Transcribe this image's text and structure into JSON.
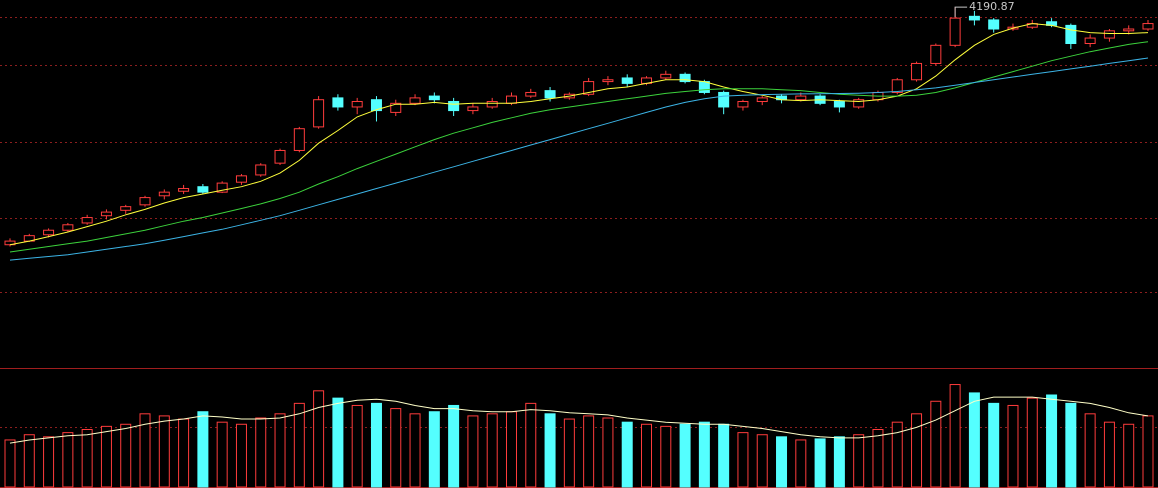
{
  "chart_data": {
    "type": "candlestick",
    "up_color": "#ff3c3c",
    "down_color": "#54ffff",
    "ylim": [
      2200,
      4230
    ],
    "vlim": [
      0,
      110
    ],
    "ohlc": [
      [
        2880,
        2915,
        2870,
        2900
      ],
      [
        2900,
        2940,
        2895,
        2930
      ],
      [
        2935,
        2970,
        2920,
        2960
      ],
      [
        2960,
        3000,
        2950,
        2990
      ],
      [
        3000,
        3045,
        2990,
        3030
      ],
      [
        3040,
        3075,
        3020,
        3060
      ],
      [
        3070,
        3100,
        3050,
        3090
      ],
      [
        3100,
        3150,
        3090,
        3140
      ],
      [
        3150,
        3185,
        3130,
        3170
      ],
      [
        3175,
        3210,
        3160,
        3190
      ],
      [
        3200,
        3215,
        3160,
        3170
      ],
      [
        3170,
        3230,
        3165,
        3220
      ],
      [
        3225,
        3270,
        3210,
        3260
      ],
      [
        3265,
        3330,
        3255,
        3320
      ],
      [
        3330,
        3410,
        3320,
        3400
      ],
      [
        3400,
        3530,
        3390,
        3520
      ],
      [
        3530,
        3700,
        3520,
        3680
      ],
      [
        3690,
        3710,
        3620,
        3640
      ],
      [
        3640,
        3690,
        3600,
        3670
      ],
      [
        3680,
        3700,
        3560,
        3620
      ],
      [
        3610,
        3680,
        3590,
        3660
      ],
      [
        3660,
        3710,
        3650,
        3690
      ],
      [
        3700,
        3720,
        3660,
        3680
      ],
      [
        3670,
        3690,
        3590,
        3620
      ],
      [
        3620,
        3660,
        3600,
        3640
      ],
      [
        3640,
        3690,
        3630,
        3670
      ],
      [
        3660,
        3720,
        3650,
        3700
      ],
      [
        3700,
        3740,
        3690,
        3720
      ],
      [
        3730,
        3750,
        3670,
        3690
      ],
      [
        3690,
        3720,
        3680,
        3710
      ],
      [
        3710,
        3800,
        3700,
        3780
      ],
      [
        3780,
        3810,
        3760,
        3790
      ],
      [
        3800,
        3820,
        3750,
        3770
      ],
      [
        3770,
        3810,
        3760,
        3800
      ],
      [
        3800,
        3840,
        3790,
        3820
      ],
      [
        3820,
        3830,
        3770,
        3780
      ],
      [
        3780,
        3790,
        3710,
        3720
      ],
      [
        3720,
        3730,
        3600,
        3640
      ],
      [
        3640,
        3680,
        3620,
        3670
      ],
      [
        3670,
        3700,
        3650,
        3690
      ],
      [
        3700,
        3710,
        3660,
        3680
      ],
      [
        3680,
        3720,
        3670,
        3700
      ],
      [
        3700,
        3710,
        3650,
        3660
      ],
      [
        3670,
        3680,
        3610,
        3640
      ],
      [
        3640,
        3690,
        3630,
        3680
      ],
      [
        3680,
        3730,
        3670,
        3720
      ],
      [
        3720,
        3800,
        3710,
        3790
      ],
      [
        3790,
        3890,
        3780,
        3880
      ],
      [
        3880,
        3990,
        3870,
        3980
      ],
      [
        3980,
        4190.87,
        3970,
        4130
      ],
      [
        4140,
        4170,
        4090,
        4120
      ],
      [
        4120,
        4130,
        4050,
        4070
      ],
      [
        4070,
        4100,
        4060,
        4080
      ],
      [
        4080,
        4120,
        4070,
        4100
      ],
      [
        4110,
        4130,
        4080,
        4090
      ],
      [
        4090,
        4100,
        3960,
        3990
      ],
      [
        3990,
        4040,
        3970,
        4020
      ],
      [
        4020,
        4070,
        4000,
        4060
      ],
      [
        4060,
        4090,
        4040,
        4070
      ],
      [
        4070,
        4120,
        4060,
        4100
      ]
    ],
    "ma_lines": [
      {
        "color": "#ffff3c",
        "values": [
          2880,
          2900,
          2925,
          2950,
          2980,
          3010,
          3045,
          3075,
          3110,
          3140,
          3160,
          3180,
          3200,
          3230,
          3275,
          3345,
          3440,
          3510,
          3585,
          3625,
          3655,
          3655,
          3665,
          3655,
          3660,
          3660,
          3660,
          3670,
          3685,
          3700,
          3720,
          3740,
          3750,
          3770,
          3790,
          3790,
          3780,
          3750,
          3725,
          3705,
          3680,
          3675,
          3680,
          3675,
          3670,
          3680,
          3700,
          3740,
          3810,
          3900,
          3980,
          4040,
          4075,
          4100,
          4090,
          4065,
          4050,
          4045,
          4045,
          4050
        ]
      },
      {
        "color": "#3cd23c",
        "values": [
          2840,
          2855,
          2870,
          2885,
          2900,
          2920,
          2940,
          2960,
          2985,
          3010,
          3030,
          3055,
          3080,
          3105,
          3135,
          3170,
          3215,
          3255,
          3300,
          3340,
          3380,
          3420,
          3460,
          3495,
          3525,
          3555,
          3580,
          3605,
          3625,
          3640,
          3655,
          3670,
          3685,
          3700,
          3715,
          3725,
          3735,
          3740,
          3740,
          3740,
          3735,
          3730,
          3720,
          3710,
          3705,
          3700,
          3700,
          3705,
          3720,
          3745,
          3775,
          3805,
          3835,
          3865,
          3895,
          3920,
          3945,
          3965,
          3985,
          4000
        ]
      },
      {
        "color": "#3cb4e6",
        "values": [
          2795,
          2805,
          2815,
          2825,
          2840,
          2855,
          2870,
          2885,
          2905,
          2925,
          2945,
          2965,
          2990,
          3015,
          3040,
          3070,
          3100,
          3130,
          3160,
          3190,
          3220,
          3250,
          3280,
          3310,
          3340,
          3370,
          3400,
          3430,
          3460,
          3490,
          3520,
          3550,
          3580,
          3610,
          3640,
          3665,
          3685,
          3700,
          3705,
          3708,
          3710,
          3712,
          3713,
          3714,
          3716,
          3720,
          3725,
          3735,
          3745,
          3760,
          3775,
          3790,
          3805,
          3820,
          3835,
          3850,
          3865,
          3880,
          3895,
          3910
        ]
      }
    ],
    "volume": [
      45,
      50,
      48,
      52,
      55,
      58,
      60,
      70,
      68,
      65,
      72,
      62,
      60,
      66,
      70,
      80,
      92,
      85,
      78,
      80,
      75,
      70,
      72,
      78,
      68,
      70,
      72,
      80,
      70,
      65,
      68,
      66,
      62,
      60,
      58,
      60,
      62,
      60,
      52,
      50,
      48,
      45,
      46,
      48,
      50,
      55,
      62,
      70,
      82,
      98,
      90,
      80,
      78,
      85,
      88,
      80,
      70,
      62,
      60,
      68
    ],
    "volume_ma": {
      "color": "#ffffc8",
      "values": [
        42,
        45,
        47,
        49,
        50,
        53,
        56,
        60,
        63,
        65,
        68,
        67,
        65,
        65,
        66,
        70,
        76,
        80,
        83,
        84,
        82,
        78,
        75,
        75,
        73,
        72,
        72,
        74,
        73,
        71,
        70,
        69,
        66,
        64,
        62,
        61,
        60,
        60,
        58,
        56,
        53,
        50,
        48,
        47,
        47,
        49,
        52,
        57,
        64,
        73,
        82,
        86,
        86,
        86,
        84,
        82,
        80,
        76,
        71,
        68
      ]
    }
  }
}
